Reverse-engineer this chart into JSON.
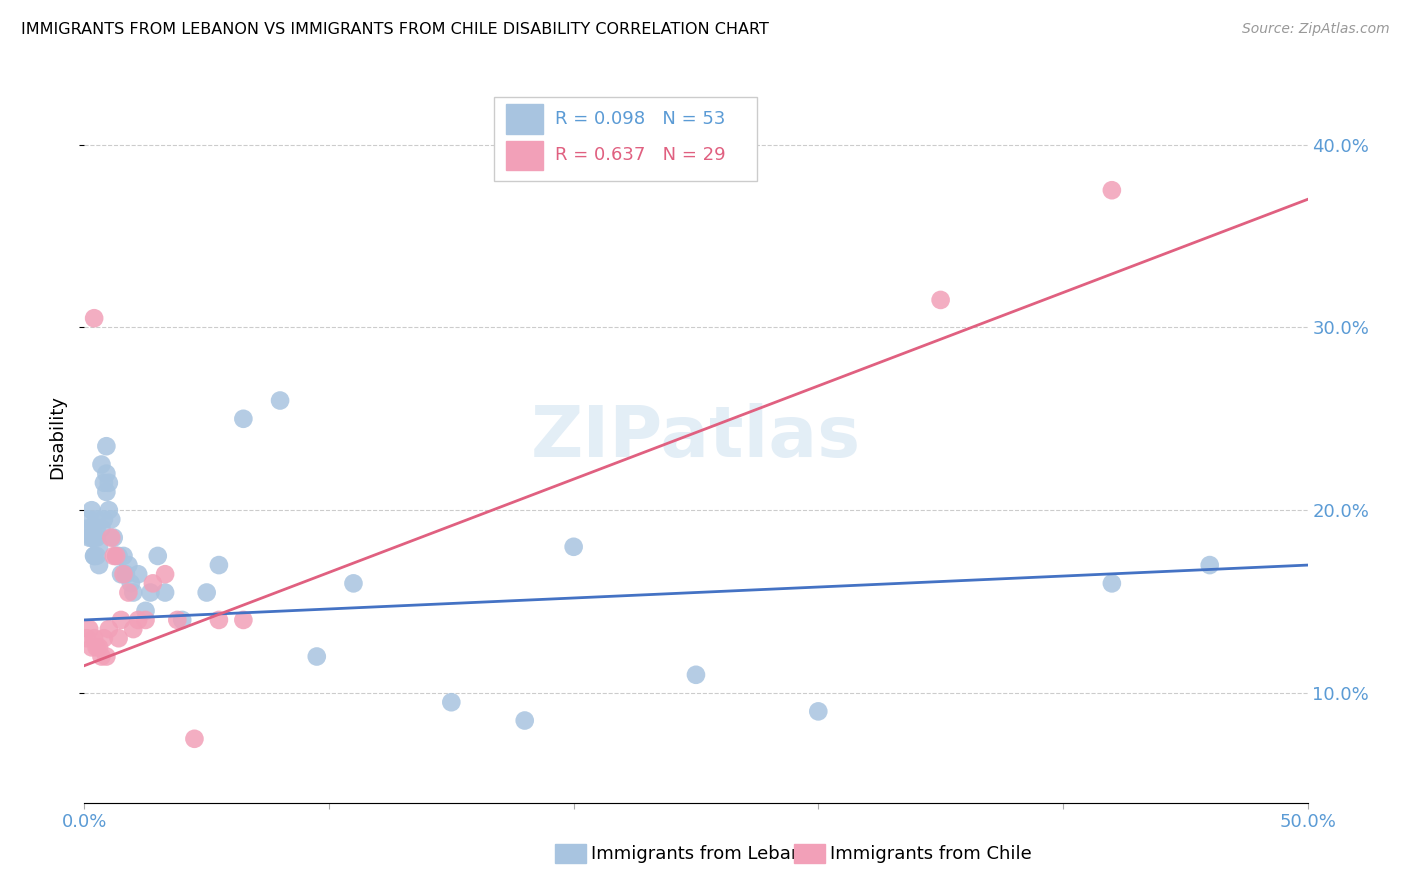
{
  "title": "IMMIGRANTS FROM LEBANON VS IMMIGRANTS FROM CHILE DISABILITY CORRELATION CHART",
  "source": "Source: ZipAtlas.com",
  "ylabel": "Disability",
  "xlim": [
    0.0,
    0.5
  ],
  "ylim": [
    0.04,
    0.44
  ],
  "lebanon_color": "#a8c4e0",
  "chile_color": "#f2a0b8",
  "lebanon_line_color": "#4472c4",
  "chile_line_color": "#e06080",
  "legend_R_lebanon": "R = 0.098",
  "legend_N_lebanon": "N = 53",
  "legend_R_chile": "R = 0.637",
  "legend_N_chile": "N = 29",
  "legend_label_lebanon": "Immigrants from Lebanon",
  "legend_label_chile": "Immigrants from Chile",
  "lebanon_x": [
    0.001,
    0.002,
    0.002,
    0.003,
    0.003,
    0.003,
    0.004,
    0.004,
    0.004,
    0.005,
    0.005,
    0.005,
    0.005,
    0.006,
    0.006,
    0.007,
    0.007,
    0.008,
    0.008,
    0.009,
    0.009,
    0.009,
    0.01,
    0.01,
    0.011,
    0.012,
    0.013,
    0.014,
    0.015,
    0.016,
    0.017,
    0.018,
    0.019,
    0.02,
    0.022,
    0.025,
    0.027,
    0.03,
    0.033,
    0.04,
    0.05,
    0.055,
    0.065,
    0.08,
    0.095,
    0.11,
    0.15,
    0.18,
    0.2,
    0.25,
    0.3,
    0.42,
    0.46
  ],
  "lebanon_y": [
    0.19,
    0.195,
    0.185,
    0.2,
    0.19,
    0.185,
    0.175,
    0.185,
    0.175,
    0.195,
    0.19,
    0.185,
    0.175,
    0.18,
    0.17,
    0.225,
    0.19,
    0.215,
    0.195,
    0.235,
    0.22,
    0.21,
    0.215,
    0.2,
    0.195,
    0.185,
    0.175,
    0.175,
    0.165,
    0.175,
    0.165,
    0.17,
    0.16,
    0.155,
    0.165,
    0.145,
    0.155,
    0.175,
    0.155,
    0.14,
    0.155,
    0.17,
    0.25,
    0.26,
    0.12,
    0.16,
    0.095,
    0.085,
    0.18,
    0.11,
    0.09,
    0.16,
    0.17
  ],
  "chile_x": [
    0.001,
    0.002,
    0.003,
    0.004,
    0.004,
    0.005,
    0.006,
    0.007,
    0.008,
    0.009,
    0.01,
    0.011,
    0.012,
    0.013,
    0.014,
    0.015,
    0.016,
    0.018,
    0.02,
    0.022,
    0.025,
    0.028,
    0.033,
    0.038,
    0.045,
    0.055,
    0.065,
    0.35,
    0.42
  ],
  "chile_y": [
    0.13,
    0.135,
    0.125,
    0.13,
    0.305,
    0.125,
    0.125,
    0.12,
    0.13,
    0.12,
    0.135,
    0.185,
    0.175,
    0.175,
    0.13,
    0.14,
    0.165,
    0.155,
    0.135,
    0.14,
    0.14,
    0.16,
    0.165,
    0.14,
    0.075,
    0.14,
    0.14,
    0.315,
    0.375
  ],
  "leb_line_x0": 0.0,
  "leb_line_y0": 0.14,
  "leb_line_x1": 0.5,
  "leb_line_y1": 0.17,
  "chile_line_x0": 0.0,
  "chile_line_y0": 0.115,
  "chile_line_x1": 0.5,
  "chile_line_y1": 0.37
}
